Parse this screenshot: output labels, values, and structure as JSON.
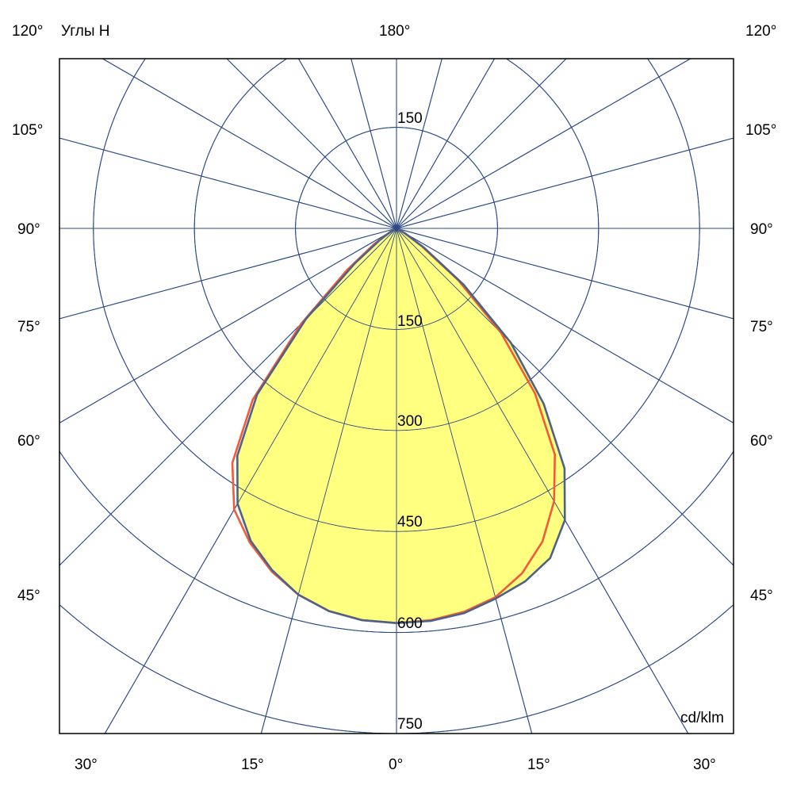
{
  "chart_data": {
    "type": "polar",
    "title": "Углы H",
    "unit_label": "cd/klm",
    "radial_ticks": [
      150,
      300,
      450,
      600,
      750
    ],
    "radial_max": 750,
    "angle_step_deg": 15,
    "top_labels": {
      "left": "120°",
      "center": "180°",
      "right": "120°"
    },
    "left_labels": [
      "105°",
      "90°",
      "75°",
      "60°",
      "45°"
    ],
    "right_labels": [
      "105°",
      "90°",
      "75°",
      "60°",
      "45°"
    ],
    "bottom_labels": [
      "30°",
      "15°",
      "0°",
      "15°",
      "30°"
    ],
    "top_radial_label": "150",
    "axis_radial_labels": [
      "150",
      "300",
      "450",
      "600",
      "750"
    ],
    "colors": {
      "grid": "#2e4a86",
      "fill": "#ffff80",
      "curve_1": "#4d6289",
      "curve_2": "#f25a3a",
      "frame": "#000000"
    },
    "angles": [
      -70,
      -65,
      -60,
      -55,
      -50,
      -45,
      -40,
      -35,
      -30,
      -25,
      -20,
      -15,
      -10,
      -5,
      0,
      5,
      10,
      15,
      20,
      25,
      30,
      35,
      40,
      45,
      50,
      55,
      60,
      65,
      70
    ],
    "series": [
      {
        "filled": true,
        "color_key": "curve_1",
        "values": [
          0,
          3,
          10,
          30,
          80,
          190,
          322,
          412,
          472,
          512,
          540,
          563,
          577,
          584,
          586,
          585,
          580,
          569,
          558,
          540,
          500,
          435,
          340,
          240,
          130,
          50,
          15,
          5,
          0
        ]
      },
      {
        "filled": false,
        "color_key": "curve_2",
        "values": [
          0,
          3,
          12,
          40,
          95,
          200,
          332,
          425,
          482,
          515,
          542,
          563,
          577,
          584,
          586,
          584,
          578,
          567,
          545,
          513,
          468,
          410,
          320,
          220,
          120,
          45,
          12,
          3,
          0
        ]
      }
    ]
  }
}
